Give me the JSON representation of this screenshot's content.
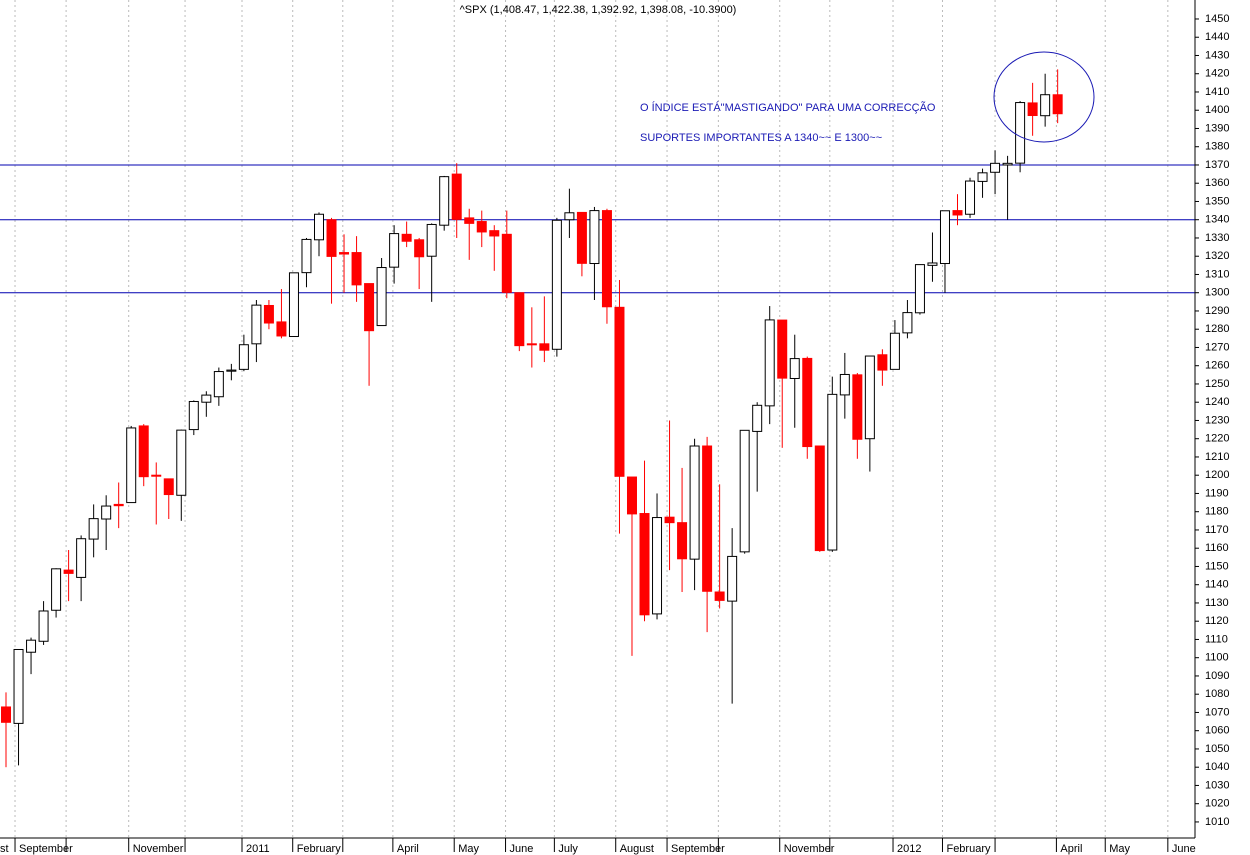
{
  "chart_data": {
    "type": "candlestick",
    "title": "^SPX (1,408.47, 1,422.38, 1,392.92, 1,398.08, -10.3900)",
    "annotations": [
      "O ÍNDICE ESTÁ\"MASTIGANDO\" PARA UMA CORRECÇÃO",
      "SUPORTES IMPORTANTES A 1340~~ E 1300~~"
    ],
    "up_color": "#ffffff",
    "down_color": "#ff0000",
    "line_color": "#0000b0",
    "hlines": [
      1370,
      1340,
      1300
    ],
    "open": [
      1073,
      1064,
      1103,
      1109,
      1126,
      1148,
      1144,
      1165,
      1176,
      1184,
      1185,
      1227,
      1200,
      1198,
      1189,
      1225,
      1240,
      1243,
      1257,
      1258,
      1272,
      1293,
      1284,
      1276,
      1311,
      1329,
      1340,
      1322,
      1322,
      1305,
      1282,
      1314,
      1332,
      1329,
      1320,
      1337,
      1365,
      1341,
      1339,
      1334,
      1332,
      1300,
      1272,
      1272,
      1269,
      1340,
      1344,
      1316,
      1345,
      1292,
      1199,
      1179,
      1124,
      1177,
      1174,
      1154,
      1216,
      1136,
      1131,
      1158,
      1224,
      1238,
      1285,
      1253,
      1264,
      1216,
      1159,
      1244,
      1255,
      1220,
      1266,
      1258,
      1278,
      1289,
      1315,
      1316,
      1345,
      1343,
      1361,
      1366,
      1370,
      1371,
      1404,
      1397,
      1408.47
    ],
    "high": [
      1081,
      1104,
      1111,
      1131,
      1149,
      1159,
      1167,
      1184,
      1189,
      1196,
      1227,
      1228,
      1207,
      1198,
      1225,
      1241,
      1246,
      1259,
      1261,
      1277,
      1296,
      1296,
      1302,
      1311,
      1330,
      1344,
      1341,
      1332,
      1331,
      1305,
      1319,
      1337,
      1339,
      1330,
      1338,
      1364,
      1371,
      1346,
      1345,
      1337,
      1345,
      1300,
      1292,
      1298,
      1341,
      1357,
      1344,
      1347,
      1346,
      1307,
      1199,
      1208,
      1190,
      1230,
      1204,
      1220,
      1221,
      1195,
      1171,
      1224.6,
      1240,
      1292.7,
      1285,
      1277,
      1265,
      1216,
      1254,
      1267,
      1256,
      1265.3,
      1269,
      1285,
      1296,
      1315.4,
      1333,
      1345,
      1354,
      1363,
      1368,
      1378,
      1375,
      1405,
      1415,
      1420,
      1422.38
    ],
    "low": [
      1040,
      1041,
      1091,
      1107,
      1122,
      1131,
      1131,
      1155,
      1159,
      1171,
      1185,
      1194,
      1173,
      1176,
      1175,
      1222,
      1232,
      1238,
      1252,
      1257,
      1262,
      1280,
      1275,
      1276,
      1303,
      1320,
      1294,
      1300,
      1295,
      1249,
      1282,
      1305,
      1325,
      1302,
      1295,
      1334,
      1330,
      1318,
      1325,
      1312,
      1297,
      1268,
      1259,
      1262,
      1265,
      1330,
      1309,
      1296,
      1283,
      1168,
      1101,
      1120,
      1121,
      1148,
      1136,
      1137,
      1114,
      1127,
      1074.8,
      1157,
      1191,
      1228,
      1215,
      1226,
      1209,
      1158,
      1158,
      1231,
      1209,
      1202,
      1249,
      1258,
      1275,
      1288,
      1306,
      1300,
      1337,
      1341,
      1352,
      1354,
      1340,
      1366,
      1386,
      1391,
      1392.92
    ],
    "close": [
      1064.6,
      1104.5,
      1109.6,
      1125.6,
      1148.7,
      1146.2,
      1165.2,
      1176.2,
      1183.1,
      1183.3,
      1225.9,
      1199.2,
      1199.7,
      1189.4,
      1224.7,
      1240.4,
      1243.9,
      1256.8,
      1257.6,
      1271.5,
      1293.2,
      1283.4,
      1276.3,
      1310.9,
      1329.2,
      1343,
      1319.9,
      1321.2,
      1304.3,
      1279.2,
      1313.8,
      1332.4,
      1328.2,
      1319.7,
      1337.4,
      1363.6,
      1340.2,
      1338,
      1333.3,
      1331.1,
      1300.2,
      1271,
      1271.5,
      1268.5,
      1339.7,
      1343.8,
      1316.1,
      1345,
      1292.3,
      1199.4,
      1178.8,
      1123.5,
      1176.8,
      1174,
      1154.2,
      1216,
      1136.4,
      1131.4,
      1155.5,
      1224.6,
      1238.3,
      1285.1,
      1253.2,
      1263.9,
      1215.7,
      1158.7,
      1244.3,
      1255.2,
      1219.7,
      1265.3,
      1257.6,
      1277.8,
      1289.1,
      1315.4,
      1316.3,
      1344.9,
      1342.6,
      1361.2,
      1365.7,
      1370.9,
      1370.9,
      1404.2,
      1397.1,
      1408.5,
      1398.08
    ],
    "xlim": [
      -0.48,
      94.97
    ],
    "xticks": [
      {
        "value": -0.8,
        "label": "st"
      },
      {
        "value": 0.72,
        "label": "September"
      },
      {
        "value": 4.8,
        "label": null
      },
      {
        "value": 9.8,
        "label": "November"
      },
      {
        "value": 14.3,
        "label": null
      },
      {
        "value": 18.85,
        "label": "2011"
      },
      {
        "value": 22.9,
        "label": "February"
      },
      {
        "value": 26.9,
        "label": null
      },
      {
        "value": 30.9,
        "label": "April"
      },
      {
        "value": 35.8,
        "label": "May"
      },
      {
        "value": 39.9,
        "label": "June"
      },
      {
        "value": 43.8,
        "label": "July"
      },
      {
        "value": 48.7,
        "label": "August"
      },
      {
        "value": 52.8,
        "label": "September"
      },
      {
        "value": 56.9,
        "label": null
      },
      {
        "value": 61.8,
        "label": "November"
      },
      {
        "value": 65.8,
        "label": null
      },
      {
        "value": 70.85,
        "label": "2012"
      },
      {
        "value": 74.8,
        "label": "February"
      },
      {
        "value": 79,
        "label": null
      },
      {
        "value": 83.9,
        "label": "April"
      },
      {
        "value": 87.8,
        "label": "May"
      },
      {
        "value": 92.8,
        "label": "June"
      }
    ],
    "ylim": [
      1001.2,
      1460.4
    ],
    "yticks": [
      1010,
      1020,
      1030,
      1040,
      1050,
      1060,
      1070,
      1080,
      1090,
      1100,
      1110,
      1120,
      1130,
      1140,
      1150,
      1160,
      1170,
      1180,
      1190,
      1200,
      1210,
      1220,
      1230,
      1240,
      1250,
      1260,
      1270,
      1280,
      1290,
      1300,
      1310,
      1320,
      1330,
      1340,
      1350,
      1360,
      1370,
      1380,
      1390,
      1400,
      1410,
      1420,
      1430,
      1440,
      1450
    ]
  }
}
